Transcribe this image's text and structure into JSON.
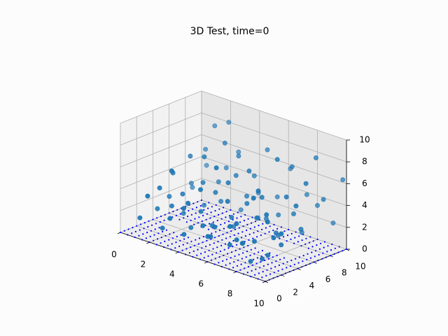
{
  "chart_data": {
    "type": "scatter",
    "title": "3D Test, time=0",
    "projection": "3d",
    "xlim": [
      0,
      10
    ],
    "ylim": [
      0,
      10
    ],
    "zlim": [
      0,
      10
    ],
    "x_ticks": [
      "0",
      "2",
      "4",
      "6",
      "8",
      "10"
    ],
    "y_ticks": [
      "0",
      "2",
      "4",
      "6",
      "8",
      "10"
    ],
    "z_ticks": [
      "0",
      "2",
      "4",
      "6",
      "8",
      "10"
    ],
    "grid": true,
    "colors": {
      "scatter": "#1f77b4",
      "floor_dots": "#0000ff",
      "grid": "#b0b0b0",
      "pane_x": "#f2f2f2",
      "pane_y": "#e6e6e6",
      "pane_z": "#ececec"
    },
    "scatter_series": {
      "marker": "circle",
      "points": [
        [
          0.4,
          9.9,
          3.4
        ],
        [
          1.0,
          8.7,
          5.5
        ],
        [
          1.3,
          9.3,
          7.6
        ],
        [
          0.6,
          7.8,
          2.1
        ],
        [
          2.1,
          9.6,
          8.2
        ],
        [
          2.6,
          8.4,
          4.6
        ],
        [
          3.0,
          9.2,
          6.0
        ],
        [
          2.8,
          7.1,
          3.8
        ],
        [
          3.5,
          8.6,
          1.1
        ],
        [
          3.9,
          7.6,
          6.5
        ],
        [
          4.2,
          9.5,
          2.7
        ],
        [
          4.7,
          8.1,
          4.9
        ],
        [
          5.1,
          9.0,
          7.2
        ],
        [
          5.4,
          7.3,
          1.6
        ],
        [
          5.9,
          8.8,
          3.3
        ],
        [
          6.3,
          9.7,
          5.8
        ],
        [
          6.7,
          7.5,
          2.4
        ],
        [
          7.2,
          8.3,
          6.8
        ],
        [
          7.6,
          9.4,
          4.1
        ],
        [
          8.1,
          7.9,
          1.3
        ],
        [
          8.5,
          9.1,
          3.6
        ],
        [
          8.9,
          8.2,
          8.4
        ],
        [
          9.3,
          9.6,
          2.2
        ],
        [
          9.7,
          7.7,
          5.1
        ],
        [
          9.8,
          9.9,
          6.3
        ],
        [
          1.2,
          6.6,
          3.1
        ],
        [
          1.8,
          5.4,
          6.2
        ],
        [
          2.3,
          6.2,
          1.7
        ],
        [
          2.9,
          5.0,
          4.4
        ],
        [
          3.4,
          6.8,
          7.7
        ],
        [
          3.8,
          5.6,
          2.9
        ],
        [
          4.4,
          6.4,
          5.3
        ],
        [
          4.9,
          5.2,
          1.2
        ],
        [
          5.3,
          6.1,
          3.9
        ],
        [
          5.8,
          5.5,
          6.6
        ],
        [
          6.2,
          6.9,
          2.0
        ],
        [
          6.8,
          5.3,
          4.7
        ],
        [
          7.3,
          6.3,
          8.1
        ],
        [
          7.7,
          5.7,
          1.5
        ],
        [
          8.2,
          6.7,
          3.4
        ],
        [
          8.6,
          5.1,
          5.6
        ],
        [
          9.1,
          6.0,
          2.6
        ],
        [
          9.5,
          5.9,
          7.0
        ],
        [
          0.8,
          4.6,
          2.3
        ],
        [
          1.5,
          3.8,
          5.0
        ],
        [
          2.0,
          4.2,
          1.4
        ],
        [
          2.5,
          3.2,
          3.7
        ],
        [
          3.1,
          4.8,
          6.9
        ],
        [
          3.6,
          3.5,
          2.5
        ],
        [
          4.1,
          4.4,
          4.2
        ],
        [
          4.6,
          3.1,
          1.8
        ],
        [
          5.2,
          4.0,
          5.7
        ],
        [
          5.6,
          3.7,
          2.8
        ],
        [
          6.1,
          4.7,
          4.0
        ],
        [
          6.6,
          3.3,
          1.0
        ],
        [
          7.0,
          4.3,
          3.2
        ],
        [
          7.5,
          3.6,
          6.1
        ],
        [
          8.0,
          4.9,
          2.1
        ],
        [
          8.4,
          3.0,
          4.5
        ],
        [
          8.8,
          4.1,
          1.6
        ],
        [
          9.2,
          3.4,
          3.0
        ],
        [
          9.6,
          4.5,
          5.4
        ],
        [
          1.1,
          2.6,
          1.9
        ],
        [
          1.7,
          1.8,
          4.3
        ],
        [
          2.2,
          2.4,
          2.7
        ],
        [
          2.7,
          1.5,
          6.4
        ],
        [
          3.3,
          2.8,
          1.1
        ],
        [
          3.7,
          1.2,
          3.5
        ],
        [
          4.3,
          2.2,
          5.2
        ],
        [
          4.8,
          1.6,
          2.3
        ],
        [
          5.0,
          2.9,
          7.3
        ],
        [
          5.5,
          1.3,
          1.7
        ],
        [
          6.0,
          2.5,
          4.8
        ],
        [
          6.5,
          1.9,
          2.9
        ],
        [
          6.9,
          2.7,
          1.3
        ],
        [
          7.4,
          1.1,
          3.8
        ],
        [
          7.9,
          2.3,
          6.0
        ],
        [
          8.3,
          1.7,
          2.4
        ],
        [
          8.7,
          2.6,
          4.1
        ],
        [
          9.0,
          1.4,
          1.2
        ],
        [
          9.4,
          2.1,
          3.1
        ],
        [
          0.9,
          0.8,
          1.5
        ],
        [
          1.6,
          0.5,
          3.9
        ],
        [
          2.4,
          0.9,
          1.2
        ],
        [
          3.2,
          0.4,
          2.6
        ],
        [
          4.0,
          0.7,
          1.4
        ],
        [
          4.5,
          0.3,
          4.6
        ],
        [
          5.7,
          0.6,
          2.0
        ],
        [
          6.4,
          0.2,
          3.3
        ],
        [
          7.1,
          0.8,
          1.8
        ],
        [
          7.8,
          0.4,
          2.7
        ],
        [
          8.6,
          0.7,
          1.0
        ],
        [
          9.9,
          0.5,
          2.2
        ]
      ]
    },
    "floor_grid": {
      "marker": "dot",
      "z": 0,
      "step": 0.5,
      "range": [
        0,
        10
      ],
      "gap_blocks": [
        [
          1,
          3,
          3.4,
          5
        ],
        [
          6,
          8.5,
          5.5,
          7.5
        ]
      ]
    }
  }
}
